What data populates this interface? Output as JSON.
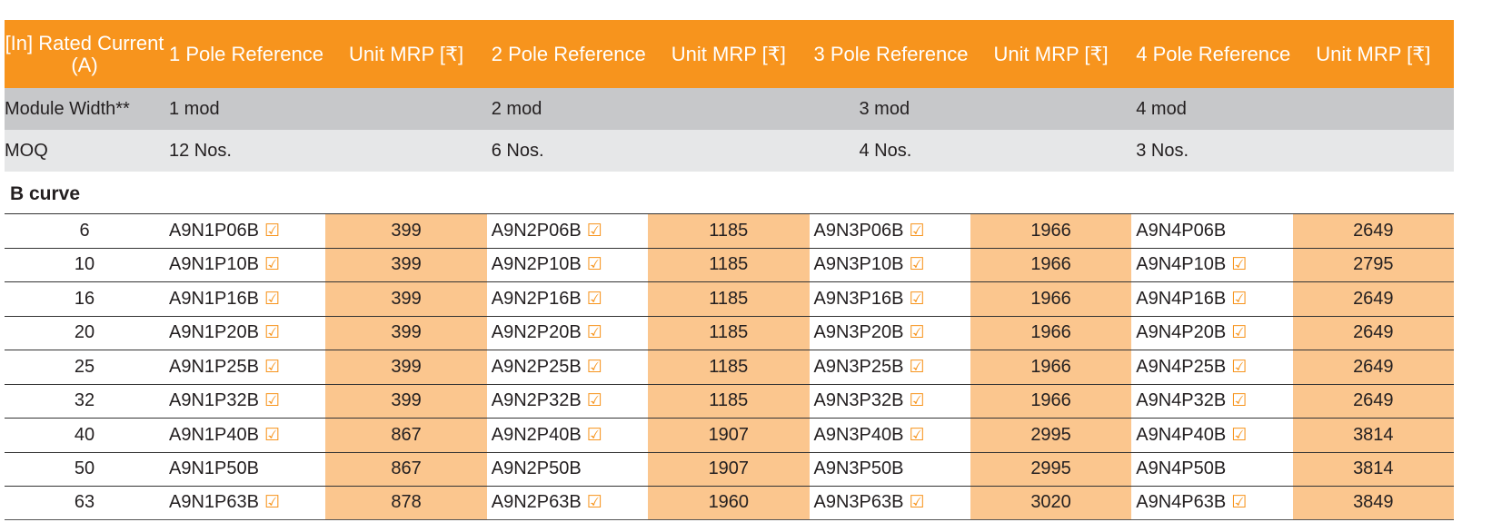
{
  "colors": {
    "header": "#f7941d",
    "mrp_cell": "#fbc68e",
    "module_row": "#c7c8ca",
    "moq_row": "#e6e7e8",
    "check": "#f7941d"
  },
  "header": [
    "[In] Rated Current (A)",
    "1 Pole Reference",
    "Unit MRP [₹]",
    "2 Pole Reference",
    "Unit MRP [₹]",
    "3 Pole Reference",
    "Unit MRP [₹]",
    "4 Pole Reference",
    "Unit MRP [₹]"
  ],
  "module_width": {
    "label": "Module Width**",
    "values": [
      "1 mod",
      "2 mod",
      "3 mod",
      "4 mod"
    ]
  },
  "moq": {
    "label": "MOQ",
    "values": [
      "12 Nos.",
      "6 Nos.",
      "4 Nos.",
      "3 Nos."
    ]
  },
  "section_title": "B curve",
  "check_icon": "☑",
  "rows": [
    {
      "current": "6",
      "refs": [
        {
          "ref": "A9N1P06B",
          "check": true
        },
        {
          "ref": "A9N2P06B",
          "check": true
        },
        {
          "ref": "A9N3P06B",
          "check": true
        },
        {
          "ref": "A9N4P06B",
          "check": false
        }
      ],
      "mrp": [
        "399",
        "1185",
        "1966",
        "2649"
      ]
    },
    {
      "current": "10",
      "refs": [
        {
          "ref": "A9N1P10B",
          "check": true
        },
        {
          "ref": "A9N2P10B",
          "check": true
        },
        {
          "ref": "A9N3P10B",
          "check": true
        },
        {
          "ref": "A9N4P10B",
          "check": true
        }
      ],
      "mrp": [
        "399",
        "1185",
        "1966",
        "2795"
      ]
    },
    {
      "current": "16",
      "refs": [
        {
          "ref": "A9N1P16B",
          "check": true
        },
        {
          "ref": "A9N2P16B",
          "check": true
        },
        {
          "ref": "A9N3P16B",
          "check": true
        },
        {
          "ref": "A9N4P16B",
          "check": true
        }
      ],
      "mrp": [
        "399",
        "1185",
        "1966",
        "2649"
      ]
    },
    {
      "current": "20",
      "refs": [
        {
          "ref": "A9N1P20B",
          "check": true
        },
        {
          "ref": "A9N2P20B",
          "check": true
        },
        {
          "ref": "A9N3P20B",
          "check": true
        },
        {
          "ref": "A9N4P20B",
          "check": true
        }
      ],
      "mrp": [
        "399",
        "1185",
        "1966",
        "2649"
      ]
    },
    {
      "current": "25",
      "refs": [
        {
          "ref": "A9N1P25B",
          "check": true
        },
        {
          "ref": "A9N2P25B",
          "check": true
        },
        {
          "ref": "A9N3P25B",
          "check": true
        },
        {
          "ref": "A9N4P25B",
          "check": true
        }
      ],
      "mrp": [
        "399",
        "1185",
        "1966",
        "2649"
      ]
    },
    {
      "current": "32",
      "refs": [
        {
          "ref": "A9N1P32B",
          "check": true
        },
        {
          "ref": "A9N2P32B",
          "check": true
        },
        {
          "ref": "A9N3P32B",
          "check": true
        },
        {
          "ref": "A9N4P32B",
          "check": true
        }
      ],
      "mrp": [
        "399",
        "1185",
        "1966",
        "2649"
      ]
    },
    {
      "current": "40",
      "refs": [
        {
          "ref": "A9N1P40B",
          "check": true
        },
        {
          "ref": "A9N2P40B",
          "check": true
        },
        {
          "ref": "A9N3P40B",
          "check": true
        },
        {
          "ref": "A9N4P40B",
          "check": true
        }
      ],
      "mrp": [
        "867",
        "1907",
        "2995",
        "3814"
      ]
    },
    {
      "current": "50",
      "refs": [
        {
          "ref": "A9N1P50B",
          "check": false
        },
        {
          "ref": "A9N2P50B",
          "check": false
        },
        {
          "ref": "A9N3P50B",
          "check": false
        },
        {
          "ref": "A9N4P50B",
          "check": false
        }
      ],
      "mrp": [
        "867",
        "1907",
        "2995",
        "3814"
      ]
    },
    {
      "current": "63",
      "refs": [
        {
          "ref": "A9N1P63B",
          "check": true
        },
        {
          "ref": "A9N2P63B",
          "check": true
        },
        {
          "ref": "A9N3P63B",
          "check": true
        },
        {
          "ref": "A9N4P63B",
          "check": true
        }
      ],
      "mrp": [
        "878",
        "1960",
        "3020",
        "3849"
      ]
    }
  ]
}
